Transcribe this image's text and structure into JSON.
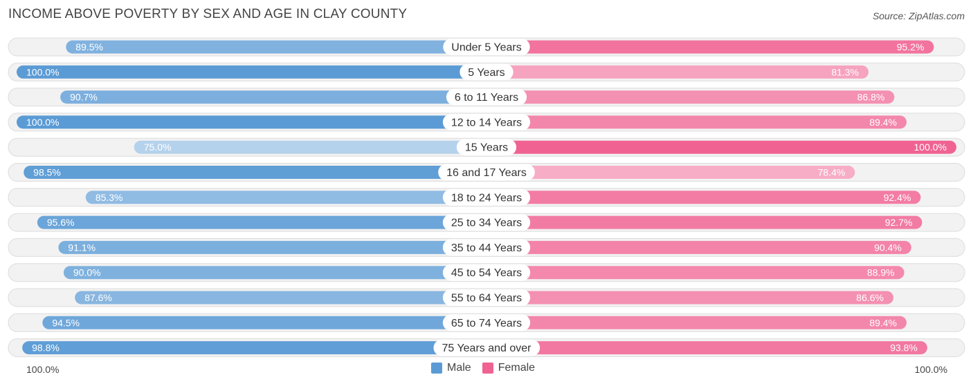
{
  "title": "INCOME ABOVE POVERTY BY SEX AND AGE IN CLAY COUNTY",
  "source": "Source: ZipAtlas.com",
  "axis": {
    "left_label": "100.0%",
    "right_label": "100.0%"
  },
  "legend": {
    "male_label": "Male",
    "female_label": "Female",
    "male_color": "#5b9bd5",
    "female_color": "#f06292"
  },
  "chart_data": {
    "type": "bar",
    "orientation": "horizontal-diverging",
    "title": "INCOME ABOVE POVERTY BY SEX AND AGE IN CLAY COUNTY",
    "categories": [
      "Under 5 Years",
      "5 Years",
      "6 to 11 Years",
      "12 to 14 Years",
      "15 Years",
      "16 and 17 Years",
      "18 to 24 Years",
      "25 to 34 Years",
      "35 to 44 Years",
      "45 to 54 Years",
      "55 to 64 Years",
      "65 to 74 Years",
      "75 Years and over"
    ],
    "series": [
      {
        "name": "Male",
        "values": [
          89.5,
          100.0,
          90.7,
          100.0,
          75.0,
          98.5,
          85.3,
          95.6,
          91.1,
          90.0,
          87.6,
          94.5,
          98.8
        ],
        "labels": [
          "89.5%",
          "100.0%",
          "90.7%",
          "100.0%",
          "75.0%",
          "98.5%",
          "85.3%",
          "95.6%",
          "91.1%",
          "90.0%",
          "87.6%",
          "94.5%",
          "98.8%"
        ]
      },
      {
        "name": "Female",
        "values": [
          95.2,
          81.3,
          86.8,
          89.4,
          100.0,
          78.4,
          92.4,
          92.7,
          90.4,
          88.9,
          86.6,
          89.4,
          93.8
        ],
        "labels": [
          "95.2%",
          "81.3%",
          "86.8%",
          "89.4%",
          "100.0%",
          "78.4%",
          "92.4%",
          "92.7%",
          "90.4%",
          "88.9%",
          "86.6%",
          "89.4%",
          "93.8%"
        ]
      }
    ],
    "xlim": [
      0,
      100
    ],
    "legend_position": "bottom-center"
  }
}
